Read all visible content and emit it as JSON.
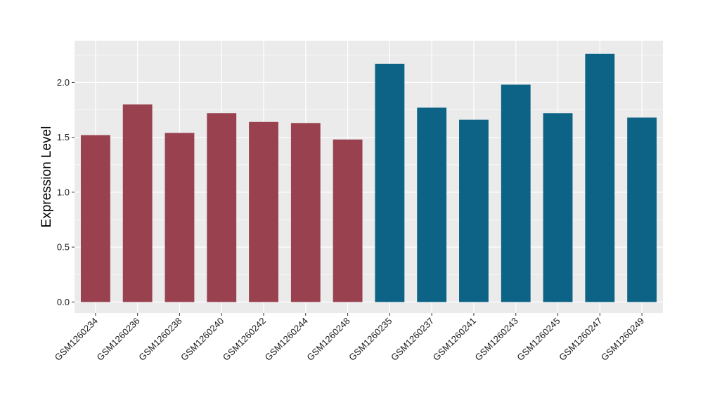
{
  "chart_data": {
    "type": "bar",
    "title": "",
    "xlabel": "",
    "ylabel": "Expression Level",
    "ylim": [
      -0.1,
      2.38
    ],
    "yticks": [
      0.0,
      0.5,
      1.0,
      1.5,
      2.0
    ],
    "ytick_labels": [
      "0.0",
      "0.5",
      "1.0",
      "1.5",
      "2.0"
    ],
    "grid": true,
    "legend": "none",
    "categories": [
      "GSM1260234",
      "GSM1260236",
      "GSM1260238",
      "GSM1260240",
      "GSM1260242",
      "GSM1260244",
      "GSM1260248",
      "GSM1260235",
      "GSM1260237",
      "GSM1260241",
      "GSM1260243",
      "GSM1260245",
      "GSM1260247",
      "GSM1260249"
    ],
    "values": [
      1.52,
      1.8,
      1.54,
      1.72,
      1.64,
      1.63,
      1.48,
      2.17,
      1.77,
      1.66,
      1.98,
      1.72,
      2.26,
      1.68
    ],
    "group": [
      "a",
      "a",
      "a",
      "a",
      "a",
      "a",
      "a",
      "b",
      "b",
      "b",
      "b",
      "b",
      "b",
      "b"
    ],
    "colors": {
      "a": "#99414f",
      "b": "#0d6385"
    },
    "panel_background": "#ebebeb",
    "grid_color": "#ffffff"
  }
}
